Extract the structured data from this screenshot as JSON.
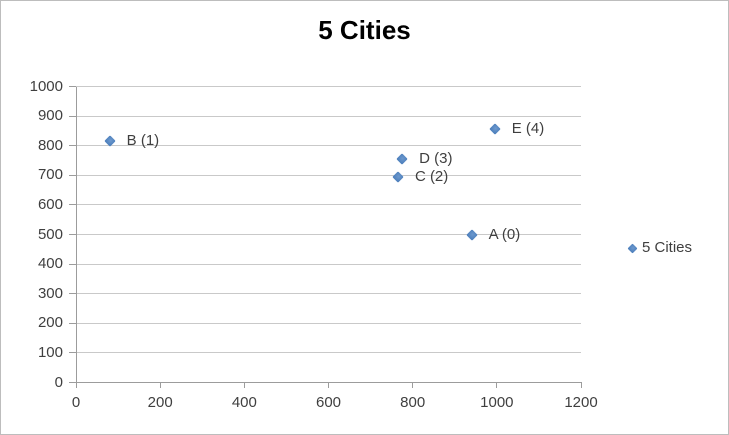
{
  "chart": {
    "title": "5 Cities",
    "legend": {
      "label": "5 Cities",
      "marker_icon": "diamond-icon"
    },
    "colors": {
      "marker": "#4f81bd",
      "marker_highlight": "#6d99ce",
      "gridline": "#c9c9c9",
      "axis": "#9c9c9c",
      "text": "#3f3f3f",
      "title": "#000000",
      "frame_border": "#bdbdbd"
    }
  },
  "chart_data": {
    "type": "scatter",
    "title": "5 Cities",
    "xlabel": "",
    "ylabel": "",
    "xlim": [
      0,
      1200
    ],
    "ylim": [
      0,
      1000
    ],
    "x_ticks": [
      0,
      200,
      400,
      600,
      800,
      1000,
      1200
    ],
    "y_ticks": [
      0,
      100,
      200,
      300,
      400,
      500,
      600,
      700,
      800,
      900,
      1000
    ],
    "grid": "horizontal",
    "legend_position": "right",
    "series": [
      {
        "name": "5 Cities",
        "marker": "diamond",
        "points": [
          {
            "label": "A (0)",
            "x": 940,
            "y": 500
          },
          {
            "label": "B (1)",
            "x": 80,
            "y": 815
          },
          {
            "label": "C (2)",
            "x": 765,
            "y": 695
          },
          {
            "label": "D (3)",
            "x": 775,
            "y": 755
          },
          {
            "label": "E (4)",
            "x": 995,
            "y": 855
          }
        ]
      }
    ]
  }
}
